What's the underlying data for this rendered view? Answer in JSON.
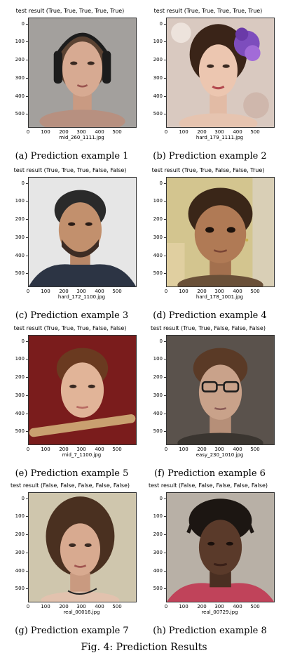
{
  "figure": {
    "caption": "Fig. 4: Prediction Results",
    "y_ticks": [
      "0",
      "100",
      "200",
      "300",
      "400",
      "500"
    ],
    "x_ticks": [
      "0",
      "100",
      "200",
      "300",
      "400",
      "500"
    ],
    "panels": [
      {
        "title": "test result (True, True, True, True, True)",
        "filename": "mid_260_1111.jpg",
        "caption": "(a) Prediction example 1"
      },
      {
        "title": "test result (True, True, True, True, True)",
        "filename": "hard_179_1111.jpg",
        "caption": "(b) Prediction example 2"
      },
      {
        "title": "test result (True, True, True, False, False)",
        "filename": "hard_172_1100.jpg",
        "caption": "(c) Prediction example 3"
      },
      {
        "title": "test result (True, True, False, False, True)",
        "filename": "hard_178_1001.jpg",
        "caption": "(d) Prediction example 4"
      },
      {
        "title": "test result (True, True, True, False, False)",
        "filename": "mid_7_1100.jpg",
        "caption": "(e) Prediction example 5"
      },
      {
        "title": "test result (True, True, False, False, False)",
        "filename": "easy_230_1010.jpg",
        "caption": "(f) Prediction example 6"
      },
      {
        "title": "test result (False, False, False, False, False)",
        "filename": "real_00016.jpg",
        "caption": "(g) Prediction example 7"
      },
      {
        "title": "test result (False, False, False, False, False)",
        "filename": "real_00729.jpg",
        "caption": "(h) Prediction example 8"
      }
    ]
  }
}
